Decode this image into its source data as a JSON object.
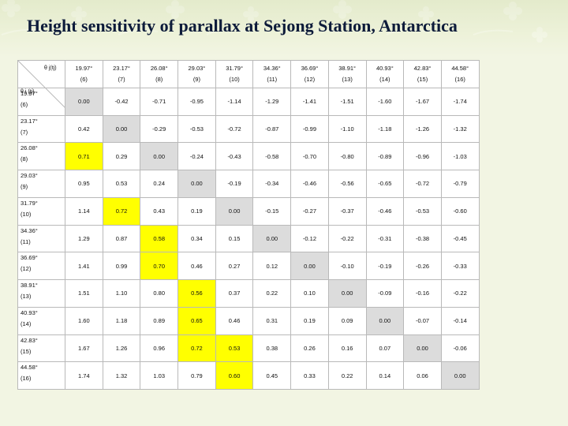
{
  "title": "Height sensitivity of parallax at Sejong Station, Antarctica",
  "table": {
    "corner_col_label": "θ j(tj)",
    "corner_row_label": "θ i (ti)",
    "col_headers": [
      {
        "angle": "19.97°",
        "index": "(6)"
      },
      {
        "angle": "23.17°",
        "index": "(7)"
      },
      {
        "angle": "26.08°",
        "index": "(8)"
      },
      {
        "angle": "29.03°",
        "index": "(9)"
      },
      {
        "angle": "31.79°",
        "index": "(10)"
      },
      {
        "angle": "34.36°",
        "index": "(11)"
      },
      {
        "angle": "36.69°",
        "index": "(12)"
      },
      {
        "angle": "38.91°",
        "index": "(13)"
      },
      {
        "angle": "40.93°",
        "index": "(14)"
      },
      {
        "angle": "42.83°",
        "index": "(15)"
      },
      {
        "angle": "44.58°",
        "index": "(16)"
      }
    ],
    "rows": [
      {
        "angle": "19.97°",
        "index": "(6)",
        "values": [
          "0.00",
          "-0.42",
          "-0.71",
          "-0.95",
          "-1.14",
          "-1.29",
          "-1.41",
          "-1.51",
          "-1.60",
          "-1.67",
          "-1.74"
        ]
      },
      {
        "angle": "23.17°",
        "index": "(7)",
        "values": [
          "0.42",
          "0.00",
          "-0.29",
          "-0.53",
          "-0.72",
          "-0.87",
          "-0.99",
          "-1.10",
          "-1.18",
          "-1.26",
          "-1.32"
        ]
      },
      {
        "angle": "26.08°",
        "index": "(8)",
        "values": [
          "0.71",
          "0.29",
          "0.00",
          "-0.24",
          "-0.43",
          "-0.58",
          "-0.70",
          "-0.80",
          "-0.89",
          "-0.96",
          "-1.03"
        ]
      },
      {
        "angle": "29.03°",
        "index": "(9)",
        "values": [
          "0.95",
          "0.53",
          "0.24",
          "0.00",
          "-0.19",
          "-0.34",
          "-0.46",
          "-0.56",
          "-0.65",
          "-0.72",
          "-0.79"
        ]
      },
      {
        "angle": "31.79°",
        "index": "(10)",
        "values": [
          "1.14",
          "0.72",
          "0.43",
          "0.19",
          "0.00",
          "-0.15",
          "-0.27",
          "-0.37",
          "-0.46",
          "-0.53",
          "-0.60"
        ]
      },
      {
        "angle": "34.36°",
        "index": "(11)",
        "values": [
          "1.29",
          "0.87",
          "0.58",
          "0.34",
          "0.15",
          "0.00",
          "-0.12",
          "-0.22",
          "-0.31",
          "-0.38",
          "-0.45"
        ]
      },
      {
        "angle": "36.69°",
        "index": "(12)",
        "values": [
          "1.41",
          "0.99",
          "0.70",
          "0.46",
          "0.27",
          "0.12",
          "0.00",
          "-0.10",
          "-0.19",
          "-0.26",
          "-0.33"
        ]
      },
      {
        "angle": "38.91°",
        "index": "(13)",
        "values": [
          "1.51",
          "1.10",
          "0.80",
          "0.56",
          "0.37",
          "0.22",
          "0.10",
          "0.00",
          "-0.09",
          "-0.16",
          "-0.22"
        ]
      },
      {
        "angle": "40.93°",
        "index": "(14)",
        "values": [
          "1.60",
          "1.18",
          "0.89",
          "0.65",
          "0.46",
          "0.31",
          "0.19",
          "0.09",
          "0.00",
          "-0.07",
          "-0.14"
        ]
      },
      {
        "angle": "42.83°",
        "index": "(15)",
        "values": [
          "1.67",
          "1.26",
          "0.96",
          "0.72",
          "0.53",
          "0.38",
          "0.26",
          "0.16",
          "0.07",
          "0.00",
          "-0.06"
        ]
      },
      {
        "angle": "44.58°",
        "index": "(16)",
        "values": [
          "1.74",
          "1.32",
          "1.03",
          "0.79",
          "0.60",
          "0.45",
          "0.33",
          "0.22",
          "0.14",
          "0.06",
          "0.00"
        ]
      }
    ],
    "highlighted_cells": [
      [
        2,
        0
      ],
      [
        4,
        1
      ],
      [
        5,
        2
      ],
      [
        6,
        2
      ],
      [
        7,
        3
      ],
      [
        8,
        3
      ],
      [
        9,
        3
      ],
      [
        9,
        4
      ],
      [
        10,
        4
      ]
    ],
    "colors": {
      "highlight": "#ffff00",
      "diagonal": "#dcdcdc"
    }
  }
}
